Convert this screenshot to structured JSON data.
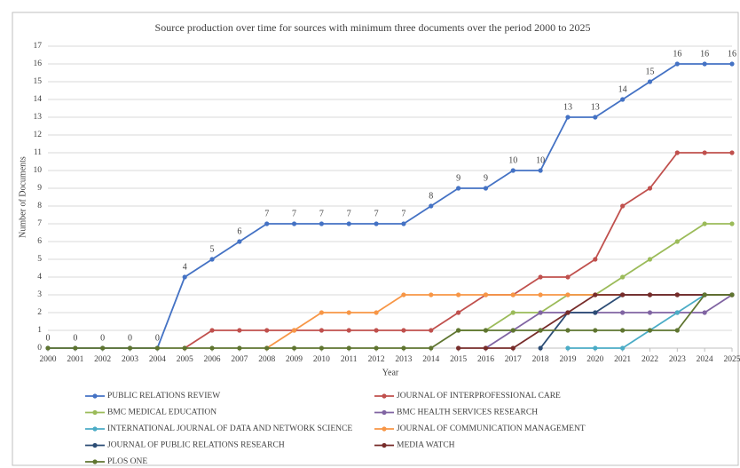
{
  "chart_data": {
    "type": "line",
    "title": "Source production over time for sources with minimum three documents over the period 2000 to 2025",
    "x_label": "Year",
    "y_label": "Number of Documents",
    "x": [
      2000,
      2001,
      2002,
      2003,
      2004,
      2005,
      2006,
      2007,
      2008,
      2009,
      2010,
      2011,
      2012,
      2013,
      2014,
      2015,
      2016,
      2017,
      2018,
      2019,
      2020,
      2021,
      2022,
      2023,
      2024,
      2025
    ],
    "xlim": [
      2000,
      2025
    ],
    "xticks": [
      2000,
      2001,
      2002,
      2003,
      2004,
      2005,
      2006,
      2007,
      2008,
      2009,
      2010,
      2011,
      2012,
      2013,
      2014,
      2015,
      2016,
      2017,
      2018,
      2019,
      2020,
      2021,
      2022,
      2023,
      2024,
      2025
    ],
    "ylim": [
      0,
      17
    ],
    "yticks": [
      0,
      1,
      2,
      3,
      4,
      5,
      6,
      7,
      8,
      9,
      10,
      11,
      12,
      13,
      14,
      15,
      16,
      17
    ],
    "grid": true,
    "legend": "bottom",
    "series": [
      {
        "name": "PUBLIC RELATIONS REVIEW",
        "color": "#4472c4",
        "data_labels": true,
        "values": [
          0,
          0,
          0,
          0,
          0,
          4,
          5,
          6,
          7,
          7,
          7,
          7,
          7,
          7,
          8,
          9,
          9,
          10,
          10,
          13,
          13,
          14,
          15,
          16,
          16,
          16
        ]
      },
      {
        "name": "JOURNAL OF INTERPROFESSIONAL CARE",
        "color": "#c0504d",
        "values": [
          null,
          null,
          null,
          null,
          null,
          0,
          1,
          1,
          1,
          1,
          1,
          1,
          1,
          1,
          1,
          2,
          3,
          3,
          4,
          4,
          5,
          8,
          9,
          11,
          11,
          11
        ]
      },
      {
        "name": "BMC MEDICAL EDUCATION",
        "color": "#9bbb59",
        "values": [
          null,
          null,
          null,
          null,
          null,
          null,
          null,
          null,
          null,
          null,
          null,
          null,
          null,
          null,
          null,
          1,
          1,
          2,
          2,
          3,
          3,
          4,
          5,
          6,
          7,
          7
        ]
      },
      {
        "name": "BMC HEALTH SERVICES RESEARCH",
        "color": "#8064a2",
        "values": [
          null,
          null,
          null,
          null,
          null,
          null,
          null,
          null,
          null,
          null,
          null,
          null,
          null,
          null,
          null,
          null,
          0,
          1,
          2,
          2,
          2,
          2,
          2,
          2,
          2,
          3
        ]
      },
      {
        "name": "INTERNATIONAL JOURNAL OF DATA AND NETWORK SCIENCE",
        "color": "#4bacc6",
        "values": [
          null,
          null,
          null,
          null,
          null,
          null,
          null,
          null,
          null,
          null,
          null,
          null,
          null,
          null,
          null,
          null,
          null,
          null,
          null,
          0,
          0,
          0,
          1,
          2,
          3,
          3
        ]
      },
      {
        "name": "JOURNAL OF COMMUNICATION MANAGEMENT",
        "color": "#f79646",
        "values": [
          null,
          null,
          null,
          null,
          null,
          null,
          null,
          null,
          0,
          1,
          2,
          2,
          2,
          3,
          3,
          3,
          3,
          3,
          3,
          3,
          3,
          3,
          3,
          3,
          3,
          3
        ]
      },
      {
        "name": "JOURNAL OF PUBLIC RELATIONS RESEARCH",
        "color": "#2c4d75",
        "values": [
          null,
          null,
          null,
          null,
          null,
          null,
          null,
          null,
          null,
          null,
          null,
          null,
          null,
          null,
          null,
          null,
          null,
          null,
          0,
          2,
          2,
          3,
          3,
          3,
          3,
          3
        ]
      },
      {
        "name": "MEDIA WATCH",
        "color": "#772c2a",
        "values": [
          null,
          null,
          null,
          null,
          null,
          null,
          null,
          null,
          null,
          null,
          null,
          null,
          null,
          null,
          null,
          0,
          0,
          0,
          1,
          2,
          3,
          3,
          3,
          3,
          3,
          3
        ]
      },
      {
        "name": "PLOS ONE",
        "color": "#5f7530",
        "values": [
          0,
          0,
          0,
          0,
          0,
          0,
          0,
          0,
          0,
          0,
          0,
          0,
          0,
          0,
          0,
          1,
          1,
          1,
          1,
          1,
          1,
          1,
          1,
          1,
          3,
          3
        ]
      }
    ]
  }
}
